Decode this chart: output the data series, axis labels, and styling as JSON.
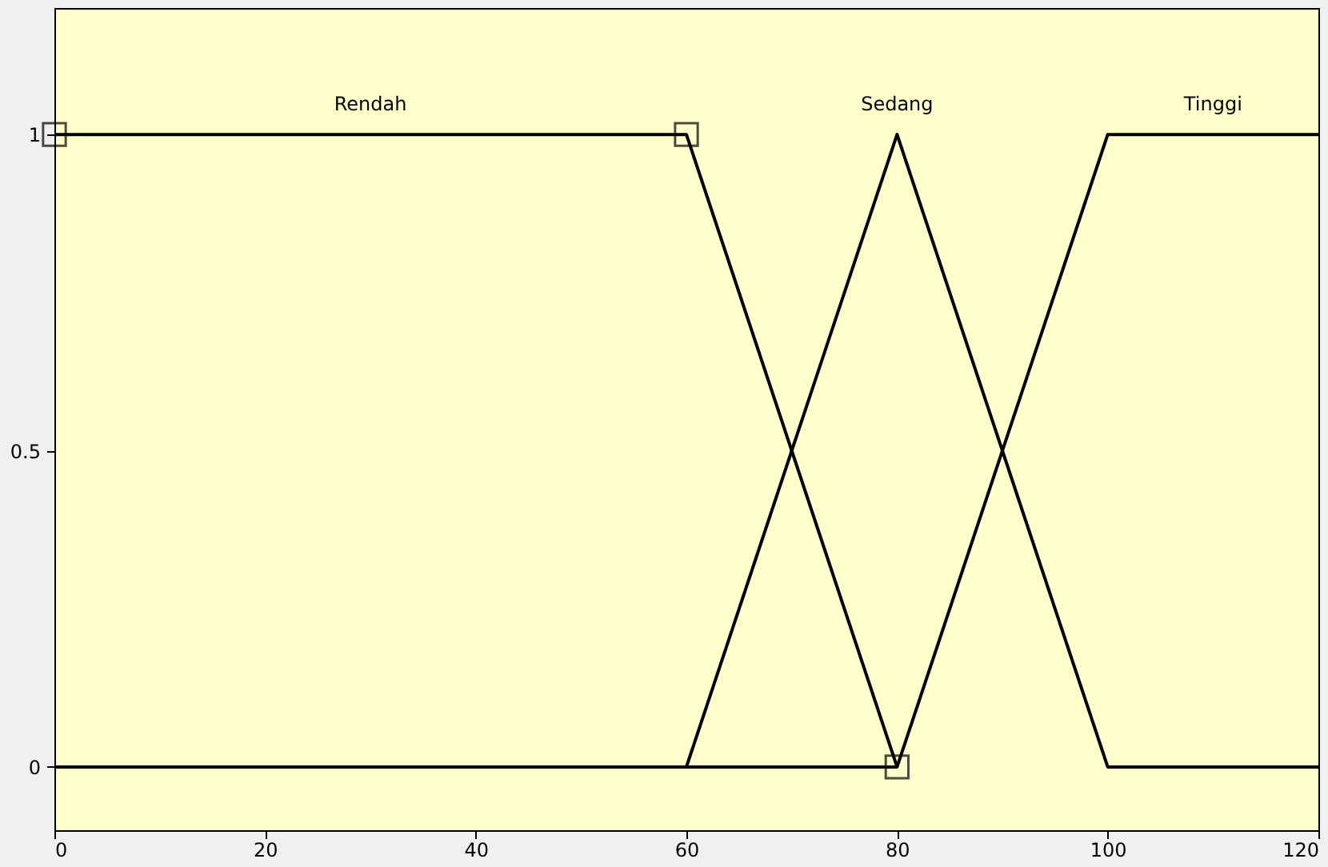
{
  "chart_data": {
    "type": "line",
    "series": [
      {
        "name": "Rendah",
        "color": "#000000",
        "x": [
          0,
          60,
          80
        ],
        "values": [
          1,
          1,
          0
        ],
        "marker": "square"
      },
      {
        "name": "Sedang",
        "color": "#000000",
        "x": [
          0,
          60,
          80,
          100,
          120
        ],
        "values": [
          0,
          0,
          1,
          0,
          0
        ],
        "marker": "none"
      },
      {
        "name": "Tinggi",
        "color": "#000000",
        "x": [
          0,
          80,
          100,
          120
        ],
        "values": [
          0,
          0,
          1,
          1
        ],
        "marker": "none"
      }
    ],
    "xlim": [
      0,
      120
    ],
    "xticks": [
      0,
      20,
      40,
      60,
      80,
      100,
      120
    ],
    "ylim": [
      -0.1,
      1.2
    ],
    "yticks": [
      0,
      0.5,
      1
    ],
    "grid": false,
    "line_style": "solid"
  }
}
